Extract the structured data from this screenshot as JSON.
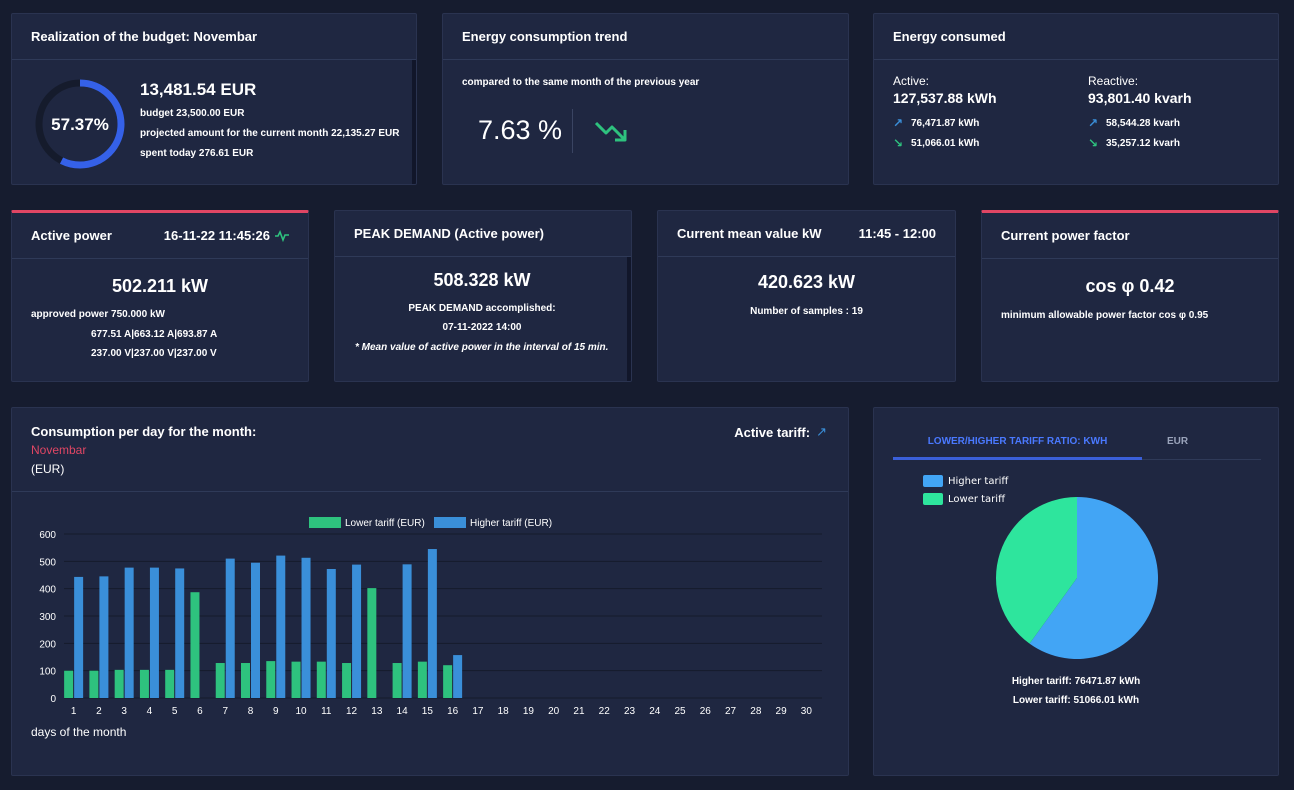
{
  "budget": {
    "title": "Realization of the budget: Novembar",
    "percent": "57.37%",
    "percent_value": 57.37,
    "amount": "13,481.54 EUR",
    "budget_line": "budget 23,500.00 EUR",
    "projected_line": "projected amount for the current month 22,135.27 EUR",
    "spent_line": "spent today 276.61 EUR"
  },
  "trend": {
    "title": "Energy consumption trend",
    "subtitle": "compared to the same month of the previous year",
    "value": "7.63 %",
    "icon": "trend-down-icon"
  },
  "energy": {
    "title": "Energy consumed",
    "active_label": "Active:",
    "active_value": "127,537.88 kWh",
    "active_up": "76,471.87 kWh",
    "active_down": "51,066.01 kWh",
    "reactive_label": "Reactive:",
    "reactive_value": "93,801.40 kvarh",
    "reactive_up": "58,544.28 kvarh",
    "reactive_down": "35,257.12 kvarh"
  },
  "active_power": {
    "title": "Active power",
    "timestamp": "16-11-22 11:45:26",
    "value": "502.211 kW",
    "approved": "approved power 750.000 kW",
    "currents": "677.51 A|663.12 A|693.87 A",
    "voltages": "237.00 V|237.00 V|237.00 V"
  },
  "peak": {
    "title": "PEAK DEMAND (Active power)",
    "value": "508.328 kW",
    "accomplished": "PEAK DEMAND accomplished:",
    "date": "07-11-2022 14:00",
    "note": "* Mean value of active power in the interval of 15 min."
  },
  "mean": {
    "title": "Current mean value kW",
    "interval": "11:45 - 12:00",
    "value": "420.623 kW",
    "samples": "Number of samples : 19"
  },
  "power_factor": {
    "title": "Current power factor",
    "value": "cos φ 0.42",
    "minimum": "minimum allowable power factor cos φ 0.95"
  },
  "consumption": {
    "title": "Consumption per day for the month:",
    "month": "Novembar",
    "unit": "(EUR)",
    "tariff_label": "Active tariff:",
    "x_axis_label": "days of the month"
  },
  "tariff_panel": {
    "tab_kwh": "LOWER/HIGHER TARIFF RATIO: KWH",
    "tab_eur": "EUR",
    "legend_higher": "Higher tariff",
    "legend_lower": "Lower tariff",
    "higher_text": "Higher tariff: 76471.87 kWh",
    "lower_text": "Lower tariff: 51066.01 kWh"
  },
  "colors": {
    "accent_red": "#e04664",
    "lower_green": "#2ec27e",
    "higher_blue": "#3a8fd9",
    "pie_blue": "#42a5f5",
    "pie_green": "#2ee59d",
    "tab_active": "#3a5fd9"
  },
  "chart_data": [
    {
      "type": "bar",
      "categories": [
        "1",
        "2",
        "3",
        "4",
        "5",
        "6",
        "7",
        "8",
        "9",
        "10",
        "11",
        "12",
        "13",
        "14",
        "15",
        "16",
        "17",
        "18",
        "19",
        "20",
        "21",
        "22",
        "23",
        "24",
        "25",
        "26",
        "27",
        "28",
        "29",
        "30"
      ],
      "series": [
        {
          "name": "Lower tariff (EUR)",
          "values": [
            100,
            100,
            103,
            103,
            103,
            387,
            128,
            128,
            135,
            133,
            133,
            128,
            402,
            128,
            133,
            120,
            0,
            0,
            0,
            0,
            0,
            0,
            0,
            0,
            0,
            0,
            0,
            0,
            0,
            0
          ]
        },
        {
          "name": "Higher tariff (EUR)",
          "values": [
            443,
            445,
            477,
            477,
            474,
            0,
            510,
            495,
            521,
            513,
            472,
            488,
            0,
            489,
            545,
            157,
            0,
            0,
            0,
            0,
            0,
            0,
            0,
            0,
            0,
            0,
            0,
            0,
            0,
            0
          ]
        }
      ],
      "ylim": [
        0,
        600
      ],
      "yticks": [
        0,
        100,
        200,
        300,
        400,
        500,
        600
      ],
      "xlabel": "days of the month",
      "legend": "top-center",
      "grid": true
    },
    {
      "type": "pie",
      "labels": [
        "Higher tariff",
        "Lower tariff"
      ],
      "values": [
        76471.87,
        51066.01
      ],
      "legend": "top-left"
    }
  ]
}
